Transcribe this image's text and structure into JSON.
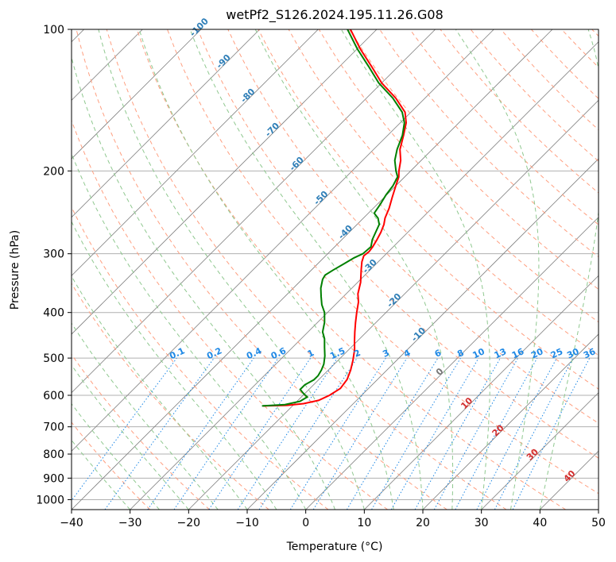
{
  "chart_data": {
    "type": "line",
    "title": "wetPf2_S126.2024.195.11.26.G08",
    "xlabel": "Temperature (°C)",
    "ylabel": "Pressure (hPa)",
    "xlim": [
      -40,
      50
    ],
    "ylim": [
      1050,
      100
    ],
    "y_scale": "log",
    "skew_t": true,
    "x_ticks": [
      -40,
      -30,
      -20,
      -10,
      0,
      10,
      20,
      30,
      40,
      50
    ],
    "y_ticks": [
      100,
      200,
      300,
      400,
      500,
      600,
      700,
      800,
      900,
      1000
    ],
    "grid": true,
    "series": [
      {
        "name": "",
        "color": "#ff0000",
        "points": [
          [
            -25,
            632
          ],
          [
            -21,
            630
          ],
          [
            -18.5,
            625
          ],
          [
            -16.5,
            615
          ],
          [
            -15.5,
            600
          ],
          [
            -14.8,
            580
          ],
          [
            -15.2,
            555
          ],
          [
            -16.2,
            530
          ],
          [
            -17.5,
            505
          ],
          [
            -19,
            480
          ],
          [
            -20.5,
            460
          ],
          [
            -22,
            440
          ],
          [
            -23.5,
            420
          ],
          [
            -25,
            400
          ],
          [
            -26.5,
            380
          ],
          [
            -28,
            365
          ],
          [
            -29.5,
            345
          ],
          [
            -31.5,
            325
          ],
          [
            -32.8,
            312
          ],
          [
            -33.5,
            303
          ],
          [
            -33.3,
            297
          ],
          [
            -33.5,
            290
          ],
          [
            -34,
            280
          ],
          [
            -34.6,
            270
          ],
          [
            -35.4,
            260
          ],
          [
            -36.3,
            252
          ],
          [
            -37.3,
            240
          ],
          [
            -38.6,
            228
          ],
          [
            -40,
            215
          ],
          [
            -41,
            206
          ],
          [
            -42,
            200
          ],
          [
            -43.5,
            190
          ],
          [
            -45.5,
            180
          ],
          [
            -47.3,
            168
          ],
          [
            -49,
            158
          ],
          [
            -51,
            150
          ],
          [
            -55,
            140
          ],
          [
            -60,
            130
          ],
          [
            -64.5,
            120
          ],
          [
            -69.5,
            110
          ],
          [
            -74.5,
            100
          ]
        ]
      },
      {
        "name": "",
        "color": "#008000",
        "points": [
          [
            -25.2,
            632
          ],
          [
            -21.5,
            628
          ],
          [
            -19.5,
            618
          ],
          [
            -19,
            605
          ],
          [
            -20.2,
            595
          ],
          [
            -21.5,
            583
          ],
          [
            -21.5,
            570
          ],
          [
            -20.8,
            556
          ],
          [
            -20.8,
            545
          ],
          [
            -21.2,
            530
          ],
          [
            -21.8,
            515
          ],
          [
            -23,
            495
          ],
          [
            -24.5,
            475
          ],
          [
            -26,
            455
          ],
          [
            -27.5,
            440
          ],
          [
            -28.8,
            420
          ],
          [
            -30.5,
            400
          ],
          [
            -32.3,
            385
          ],
          [
            -33.8,
            370
          ],
          [
            -35.3,
            355
          ],
          [
            -36.5,
            340
          ],
          [
            -36.8,
            333
          ],
          [
            -36.3,
            325
          ],
          [
            -35.5,
            315
          ],
          [
            -34.8,
            306
          ],
          [
            -34,
            300
          ],
          [
            -33.8,
            290
          ],
          [
            -34.8,
            280
          ],
          [
            -35.5,
            270
          ],
          [
            -36.2,
            260
          ],
          [
            -37.5,
            252
          ],
          [
            -39,
            246
          ],
          [
            -39.5,
            235
          ],
          [
            -40.1,
            225
          ],
          [
            -40.5,
            215
          ],
          [
            -41.2,
            206
          ],
          [
            -42.5,
            200
          ],
          [
            -44.5,
            190
          ],
          [
            -46,
            180
          ],
          [
            -47.5,
            168
          ],
          [
            -49.3,
            158
          ],
          [
            -51.5,
            150
          ],
          [
            -55.5,
            140
          ],
          [
            -60.5,
            130
          ],
          [
            -65,
            120
          ],
          [
            -70,
            110
          ],
          [
            -75,
            100
          ]
        ]
      }
    ],
    "isotherm_labels": [
      "-100",
      "-90",
      "-80",
      "-70",
      "-60",
      "-50",
      "-40",
      "-30",
      "-20",
      "-10"
    ],
    "mixing_ratio_labels": [
      "0.1",
      "0.2",
      "0.4",
      "0.6",
      "1",
      "1.5",
      "2",
      "3",
      "4",
      "6",
      "8",
      "10",
      "13",
      "16",
      "20",
      "25",
      "30",
      "36"
    ],
    "dry_adiabat_labels": [
      "0",
      "10",
      "20",
      "30",
      "40"
    ]
  },
  "colors": {
    "grid": "#b0b0b0",
    "isotherm": "#7f7f7f",
    "dry_adiabat": "#ff9f80",
    "moist_adiabat": "#8fc88f",
    "mixing_ratio": "#1e88e5",
    "label_iso": "#2f7fb8",
    "label_dry": "#d32f2f"
  }
}
